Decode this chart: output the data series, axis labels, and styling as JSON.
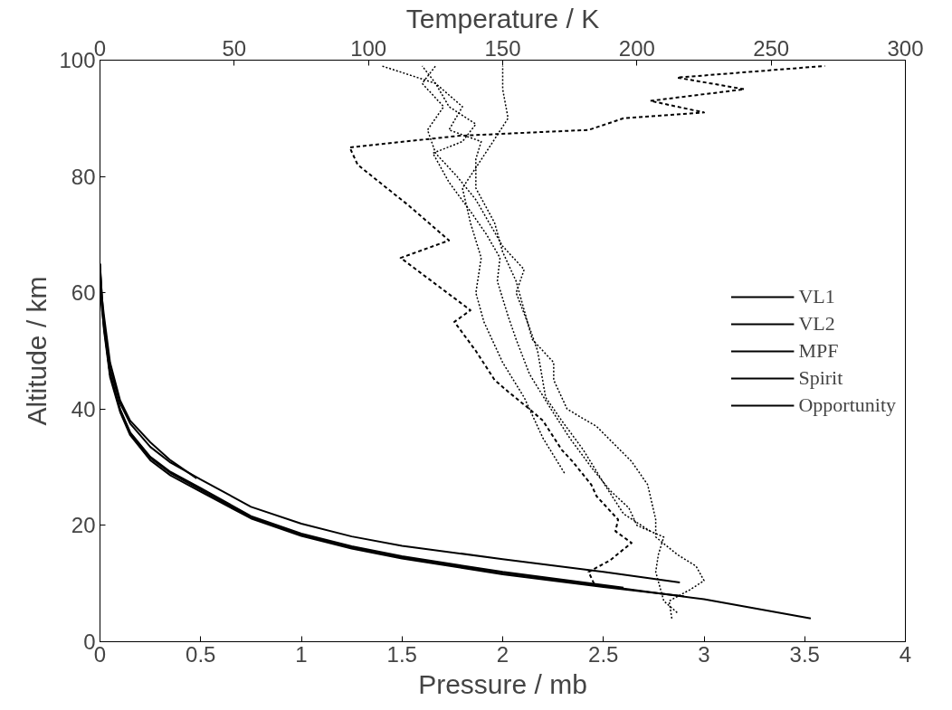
{
  "chart_data": {
    "type": "line",
    "xlabel": "Pressure / mb",
    "x2label": "Temperature / K",
    "ylabel": "Altitude / km",
    "xlim": [
      0,
      4
    ],
    "xticks": [
      0,
      0.5,
      1,
      1.5,
      2,
      2.5,
      3,
      3.5,
      4
    ],
    "x2lim": [
      0,
      300
    ],
    "x2ticks": [
      0,
      50,
      100,
      150,
      200,
      250,
      300
    ],
    "ylim": [
      0,
      100
    ],
    "yticks": [
      0,
      20,
      40,
      60,
      80,
      100
    ],
    "grid": false,
    "legend": "right",
    "marker": "none",
    "series": [
      {
        "name": "VL1",
        "color": "#000000",
        "line_style": "solid",
        "x": [
          0,
          0.01,
          0.02,
          0.05,
          0.1,
          0.15,
          0.25,
          0.35,
          0.5,
          0.75,
          1,
          1.25,
          1.5,
          2,
          2.5,
          2.88
        ],
        "values": [
          65,
          58,
          55,
          47,
          41,
          37.5,
          33.5,
          30.8,
          27.9,
          23.2,
          20.3,
          18.1,
          16.5,
          14.2,
          12,
          10.2
        ]
      },
      {
        "name": "VL2",
        "color": "#000000",
        "line_style": "solid",
        "x": [
          0,
          0.01,
          0.02,
          0.05,
          0.1,
          0.15,
          0.25,
          0.35,
          0.48
        ],
        "values": [
          65,
          59,
          56,
          48,
          41.5,
          38,
          34.3,
          31.2,
          28.1
        ]
      },
      {
        "name": "MPF",
        "color": "#000000",
        "line_style": "solid",
        "x": [
          0,
          0.01,
          0.02,
          0.05,
          0.1,
          0.15,
          0.25,
          0.35,
          0.5,
          0.75,
          1,
          1.25,
          1.5,
          2,
          2.5,
          3,
          3.53
        ],
        "values": [
          63,
          57,
          54,
          46,
          39.8,
          35.8,
          31.6,
          29,
          26.1,
          21.4,
          18.4,
          16.2,
          14.5,
          11.8,
          9.6,
          7.3,
          4
        ]
      },
      {
        "name": "Spirit",
        "color": "#000000",
        "line_style": "solid",
        "x": [
          0,
          0.02,
          0.05,
          0.1,
          0.15,
          0.25,
          0.35,
          0.5,
          0.75,
          1,
          1.25,
          1.5,
          2,
          2.5,
          2.9
        ],
        "values": [
          62,
          53.5,
          45.5,
          39.5,
          35.5,
          31.2,
          28.6,
          25.8,
          21.2,
          18.2,
          16,
          14.3,
          11.6,
          9.4,
          7.8
        ]
      },
      {
        "name": "Opportunity",
        "color": "#000000",
        "line_style": "solid",
        "x": [
          0,
          0.02,
          0.05,
          0.1,
          0.15,
          0.25,
          0.35,
          0.5,
          0.75,
          1,
          1.25,
          1.5,
          2,
          2.6
        ],
        "values": [
          64,
          54.5,
          46,
          40,
          36,
          31.8,
          29.2,
          26.4,
          21.6,
          18.6,
          16.4,
          14.7,
          12,
          9.3
        ]
      },
      {
        "color": "#000000",
        "line_style": "dashed",
        "axis": "x2",
        "x": [
          184,
          182,
          190,
          198,
          192,
          193,
          185,
          183,
          176,
          172,
          165,
          160,
          152,
          147,
          140,
          132,
          138,
          112,
          130,
          115,
          96,
          93,
          134,
          182,
          195,
          225,
          205,
          240,
          215,
          270
        ],
        "values": [
          10,
          12,
          14,
          17,
          19,
          21,
          25,
          27,
          31,
          33,
          38,
          40,
          43,
          45,
          50,
          55,
          57,
          66,
          69,
          75,
          82,
          85,
          87,
          88,
          90,
          91,
          93,
          95,
          97,
          99
        ]
      },
      {
        "color": "#000000",
        "line_style": "dotted",
        "axis": "x2",
        "x": [
          213,
          212,
          220,
          225,
          222,
          215,
          207,
          207,
          204,
          198,
          185,
          174,
          169,
          169,
          161,
          158,
          155,
          150,
          147,
          140,
          140,
          142,
          130,
          135,
          125,
          120
        ],
        "values": [
          4,
          7,
          9,
          10.5,
          13,
          15,
          18,
          21,
          27,
          31,
          37,
          40,
          45,
          48,
          52,
          57,
          62,
          67,
          72,
          78,
          83,
          86,
          88,
          92,
          96,
          99
        ]
      },
      {
        "color": "#000000",
        "line_style": "dotted",
        "axis": "x2",
        "x": [
          215,
          210,
          207,
          208,
          210,
          200,
          197,
          190,
          183,
          175,
          168,
          160,
          155,
          152,
          148,
          149,
          144,
          138,
          130,
          124,
          135,
          140,
          130,
          125,
          105
        ],
        "values": [
          5,
          7,
          12,
          15,
          18,
          20,
          23,
          26,
          30,
          35,
          40,
          46,
          52,
          56,
          62,
          66,
          70,
          74,
          79,
          84,
          86,
          89,
          92,
          96,
          99
        ]
      },
      {
        "color": "#000000",
        "line_style": "dotted",
        "axis": "x2",
        "x": [
          173,
          165,
          158,
          150,
          143,
          140,
          142,
          138,
          135,
          145,
          152,
          150,
          150
        ],
        "values": [
          29,
          35,
          42,
          48,
          55,
          60,
          66,
          72,
          78,
          85,
          90,
          95,
          99
        ]
      },
      {
        "color": "#000000",
        "line_style": "dotted",
        "axis": "x2",
        "x": [
          205,
          195,
          188,
          180,
          172,
          166,
          163,
          160,
          155,
          158,
          150,
          145,
          140,
          133,
          125,
          122,
          128,
          120,
          125
        ],
        "values": [
          19,
          22,
          27,
          33,
          38,
          42,
          50,
          54,
          60,
          64,
          68,
          72,
          76,
          80,
          84,
          88,
          92,
          96,
          99
        ]
      }
    ]
  }
}
